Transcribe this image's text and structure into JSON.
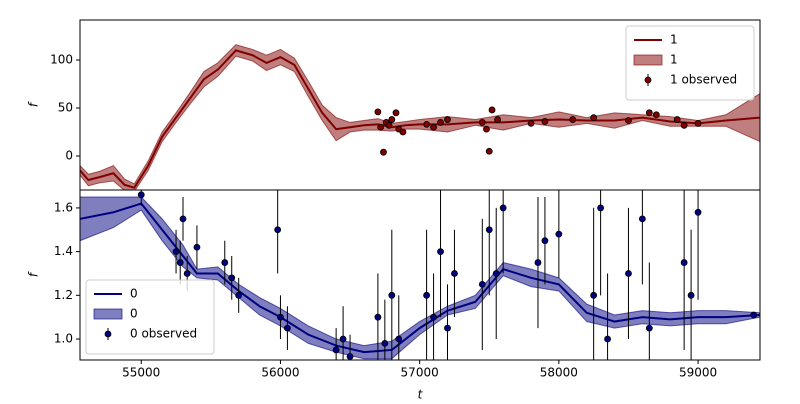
{
  "chart_data": [
    {
      "type": "line",
      "ylabel": "f",
      "xlim": [
        54560,
        59445
      ],
      "ylim": [
        -35.4,
        141.7
      ],
      "yticks": [
        0,
        50,
        100
      ],
      "legend": "upper right",
      "series": [
        {
          "kind": "line",
          "name": "1",
          "color": "#800000",
          "x": [
            54560,
            54620,
            54700,
            54800,
            54880,
            54950,
            55050,
            55150,
            55250,
            55350,
            55450,
            55550,
            55680,
            55800,
            55900,
            56000,
            56100,
            56200,
            56300,
            56400,
            56500,
            56600,
            56700,
            56800,
            56900,
            57000,
            57200,
            57400,
            57600,
            57800,
            58000,
            58200,
            58400,
            58600,
            58800,
            59000,
            59200,
            59445
          ],
          "values": [
            -15,
            -25,
            -22,
            -18,
            -30,
            -33,
            -10,
            20,
            40,
            60,
            80,
            90,
            110,
            105,
            97,
            103,
            95,
            70,
            45,
            28,
            30,
            32,
            33,
            30,
            32,
            33,
            33,
            35,
            35,
            37,
            38,
            37,
            37,
            40,
            36,
            34,
            37,
            40
          ]
        },
        {
          "kind": "band",
          "name": "1",
          "color": "#800000",
          "x": [
            54560,
            54620,
            54700,
            54800,
            54880,
            54950,
            55050,
            55150,
            55250,
            55350,
            55450,
            55550,
            55680,
            55800,
            55900,
            56000,
            56100,
            56200,
            56300,
            56400,
            56500,
            56600,
            56700,
            56800,
            56900,
            57000,
            57200,
            57400,
            57600,
            57800,
            58000,
            58200,
            58400,
            58600,
            58800,
            59000,
            59200,
            59445
          ],
          "lower": [
            -20,
            -31,
            -28,
            -26,
            -36,
            -37,
            -15,
            15,
            35,
            54,
            72,
            83,
            104,
            99,
            89,
            95,
            88,
            62,
            37,
            16,
            25,
            27,
            27,
            26,
            28,
            28,
            25,
            32,
            27,
            34,
            30,
            34,
            29,
            37,
            31,
            31,
            31,
            15
          ],
          "upper": [
            -10,
            -19,
            -16,
            -10,
            -24,
            -29,
            -5,
            25,
            45,
            66,
            88,
            97,
            116,
            111,
            105,
            111,
            102,
            78,
            53,
            40,
            35,
            37,
            39,
            34,
            36,
            38,
            41,
            38,
            43,
            40,
            46,
            40,
            45,
            43,
            41,
            37,
            43,
            65
          ]
        },
        {
          "kind": "observed",
          "name": "1 observed",
          "color": "#800000",
          "x": [
            56700,
            56720,
            56740,
            56760,
            56780,
            56800,
            56830,
            56850,
            56880,
            57050,
            57100,
            57150,
            57200,
            57450,
            57480,
            57500,
            57520,
            57560,
            57800,
            57900,
            58100,
            58250,
            58500,
            58650,
            58700,
            58850,
            58900,
            59000
          ],
          "values": [
            46,
            30,
            4,
            35,
            32,
            38,
            45,
            28,
            25,
            33,
            30,
            35,
            38,
            35,
            28,
            5,
            48,
            38,
            34,
            36,
            38,
            40,
            37,
            45,
            43,
            38,
            32,
            34
          ],
          "errors": [
            3,
            3,
            3,
            3,
            3,
            3,
            3,
            3,
            3,
            3,
            3,
            3,
            3,
            3,
            3,
            3,
            3,
            3,
            2,
            2,
            2,
            2,
            2,
            2,
            2,
            2,
            2,
            2
          ]
        }
      ]
    },
    {
      "type": "line",
      "ylabel": "f",
      "xlabel": "t",
      "xlim": [
        54560,
        59445
      ],
      "ylim": [
        0.904,
        1.682
      ],
      "xticks": [
        55000,
        56000,
        57000,
        58000,
        59000
      ],
      "yticks": [
        {
          "value": 1,
          "label": "1.0"
        },
        1.2,
        1.4,
        1.6
      ],
      "legend": "lower left",
      "series": [
        {
          "kind": "line",
          "name": "0",
          "color": "#000080",
          "x": [
            54560,
            54800,
            55000,
            55150,
            55300,
            55400,
            55550,
            55700,
            55850,
            56000,
            56200,
            56400,
            56600,
            56800,
            57000,
            57200,
            57400,
            57600,
            57800,
            58000,
            58200,
            58400,
            58600,
            58800,
            59000,
            59200,
            59445
          ],
          "values": [
            1.55,
            1.58,
            1.62,
            1.5,
            1.38,
            1.3,
            1.3,
            1.22,
            1.15,
            1.1,
            1.02,
            0.97,
            0.94,
            0.95,
            1.05,
            1.13,
            1.17,
            1.32,
            1.28,
            1.25,
            1.12,
            1.08,
            1.1,
            1.09,
            1.1,
            1.1,
            1.11
          ]
        },
        {
          "kind": "band",
          "name": "0",
          "color": "#000080",
          "x": [
            54560,
            54800,
            55000,
            55150,
            55300,
            55400,
            55550,
            55700,
            55850,
            56000,
            56200,
            56400,
            56600,
            56800,
            57000,
            57200,
            57400,
            57600,
            57800,
            58000,
            58200,
            58400,
            58600,
            58800,
            59000,
            59200,
            59445
          ],
          "lower": [
            1.45,
            1.51,
            1.59,
            1.45,
            1.33,
            1.28,
            1.27,
            1.19,
            1.11,
            1.06,
            0.98,
            0.94,
            0.91,
            0.91,
            1.02,
            1.11,
            1.14,
            1.29,
            1.24,
            1.22,
            1.08,
            1.05,
            1.07,
            1.06,
            1.07,
            1.07,
            1.1
          ],
          "upper": [
            1.65,
            1.65,
            1.65,
            1.55,
            1.43,
            1.32,
            1.33,
            1.25,
            1.19,
            1.14,
            1.06,
            1.0,
            0.97,
            0.99,
            1.08,
            1.15,
            1.2,
            1.35,
            1.32,
            1.28,
            1.16,
            1.11,
            1.13,
            1.12,
            1.13,
            1.13,
            1.12
          ]
        },
        {
          "kind": "observed",
          "name": "0 observed",
          "color": "#000080",
          "x": [
            55000,
            55250,
            55280,
            55300,
            55330,
            55400,
            55600,
            55650,
            55700,
            55980,
            56000,
            56050,
            56400,
            56450,
            56500,
            56700,
            56750,
            56800,
            56850,
            57050,
            57100,
            57150,
            57200,
            57250,
            57450,
            57500,
            57550,
            57600,
            57850,
            57900,
            58000,
            58250,
            58300,
            58350,
            58500,
            58600,
            58650,
            58900,
            58950,
            59000,
            59400
          ],
          "values": [
            1.66,
            1.4,
            1.35,
            1.55,
            1.3,
            1.42,
            1.35,
            1.28,
            1.2,
            1.5,
            1.1,
            1.05,
            0.95,
            1.0,
            0.92,
            1.1,
            0.98,
            1.2,
            1.0,
            1.2,
            1.1,
            1.4,
            1.05,
            1.3,
            1.25,
            1.5,
            1.3,
            1.6,
            1.35,
            1.45,
            1.48,
            1.2,
            1.6,
            1.0,
            1.3,
            1.55,
            1.05,
            1.35,
            1.2,
            1.58,
            1.11
          ],
          "errors": [
            0.05,
            0.1,
            0.1,
            0.1,
            0.08,
            0.1,
            0.1,
            0.1,
            0.08,
            0.2,
            0.1,
            0.1,
            0.1,
            0.15,
            0.1,
            0.2,
            0.2,
            0.3,
            0.2,
            0.3,
            0.2,
            0.3,
            0.2,
            0.2,
            0.3,
            0.3,
            0.3,
            0.3,
            0.3,
            0.2,
            0.2,
            0.4,
            0.4,
            0.3,
            0.3,
            0.3,
            0.3,
            0.4,
            0.3,
            0.4,
            0.01
          ]
        }
      ]
    }
  ]
}
